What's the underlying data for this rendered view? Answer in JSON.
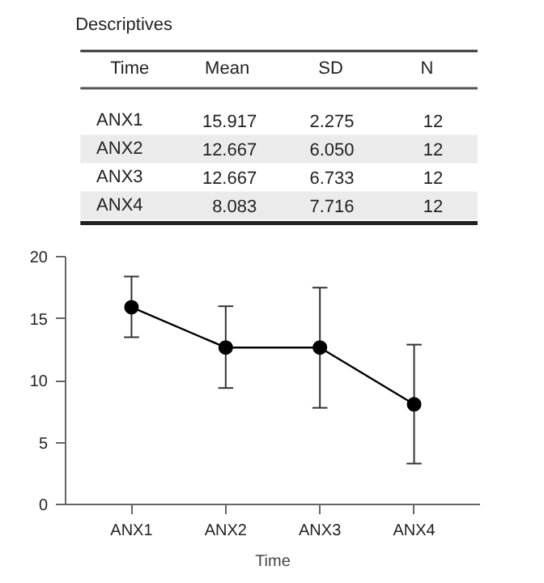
{
  "chart_data": {
    "type": "line",
    "title": "Descriptives",
    "xlabel": "Time",
    "categories": [
      "ANX1",
      "ANX2",
      "ANX3",
      "ANX4"
    ],
    "values": [
      15.917,
      12.667,
      12.667,
      8.083
    ],
    "errors": [
      [
        13.5,
        18.4
      ],
      [
        9.4,
        16.0
      ],
      [
        7.8,
        17.5
      ],
      [
        3.3,
        12.9
      ]
    ],
    "color": "#000000",
    "marker": "circle",
    "line_style": "solid",
    "grid": false,
    "ylim": [
      0,
      20
    ],
    "yticks": [
      0,
      5,
      10,
      15,
      20
    ],
    "annotations": [
      "Time",
      "Mean",
      "SD",
      "N",
      "ANX1",
      "15.917",
      "2.275",
      "12",
      "ANX2",
      "12.667",
      "6.050",
      "12",
      "ANX3",
      "12.667",
      "6.733",
      "12",
      "ANX4",
      "8.083",
      "7.716",
      "12"
    ]
  }
}
